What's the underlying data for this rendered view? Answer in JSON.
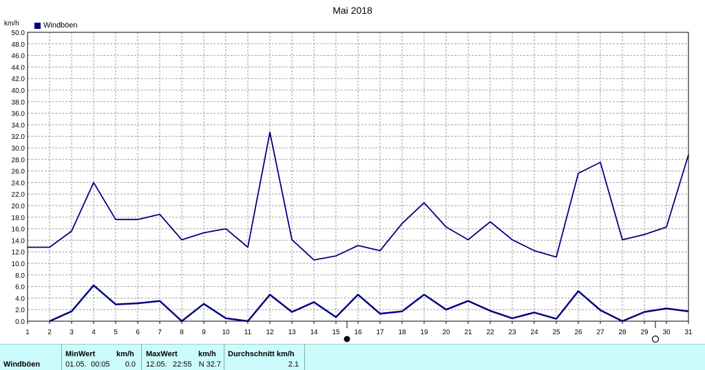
{
  "chart_data": {
    "type": "line",
    "title": "Mai 2018",
    "ylabel": "km/h",
    "xlabel": "",
    "ylim": [
      0,
      50
    ],
    "y_ticks": [
      "0.0",
      "2.0",
      "4.0",
      "6.0",
      "8.0",
      "10.0",
      "12.0",
      "14.0",
      "16.0",
      "18.0",
      "20.0",
      "22.0",
      "24.0",
      "26.0",
      "28.0",
      "30.0",
      "32.0",
      "34.0",
      "36.0",
      "38.0",
      "40.0",
      "42.0",
      "44.0",
      "46.0",
      "48.0",
      "50.0"
    ],
    "categories": [
      "1",
      "2",
      "3",
      "4",
      "5",
      "6",
      "7",
      "8",
      "9",
      "10",
      "11",
      "12",
      "13",
      "14",
      "15",
      "16",
      "17",
      "18",
      "19",
      "20",
      "21",
      "22",
      "23",
      "24",
      "25",
      "26",
      "27",
      "28",
      "29",
      "30",
      "31"
    ],
    "grid": true,
    "legend": "top-left",
    "legend_label": "Windböen",
    "series": [
      {
        "name": "Windböen",
        "role": "max",
        "color": "#000080",
        "values": [
          12.8,
          12.8,
          15.6,
          24.0,
          17.6,
          17.6,
          18.5,
          14.1,
          15.3,
          16.0,
          12.8,
          32.7,
          14.1,
          10.6,
          11.3,
          13.1,
          12.2,
          16.9,
          20.5,
          16.3,
          14.1,
          17.2,
          14.1,
          12.2,
          11.1,
          25.6,
          27.5,
          14.1,
          15.0,
          16.3,
          28.8
        ]
      },
      {
        "name": "Windböen",
        "role": "avg",
        "color": "#000080",
        "values": [
          null,
          0.0,
          1.7,
          6.2,
          2.9,
          3.1,
          3.5,
          0.0,
          3.0,
          0.5,
          0.0,
          4.6,
          1.6,
          3.3,
          0.7,
          4.6,
          1.3,
          1.7,
          4.6,
          2.0,
          3.5,
          1.8,
          0.5,
          1.5,
          0.4,
          5.2,
          1.9,
          0.0,
          1.6,
          2.2,
          1.7
        ]
      }
    ],
    "moon_markers": {
      "full_moon_after_day": "15",
      "new_moon_after_day": "29"
    }
  },
  "stats": {
    "row_label": "Windböen",
    "min": {
      "header": "MinWert",
      "unit": "km/h",
      "date": "01.05.",
      "time": "00:05",
      "value": "0.0"
    },
    "max": {
      "header": "MaxWert",
      "unit": "km/h",
      "date": "12.05.",
      "time": "22:55",
      "value": "N 32.7"
    },
    "avg": {
      "header": "Durchschnitt km/h",
      "value": "2.1"
    }
  },
  "colors": {
    "series": "#000080",
    "grid": "#a0a0a0",
    "stats_bg": "#ccfbfb"
  }
}
